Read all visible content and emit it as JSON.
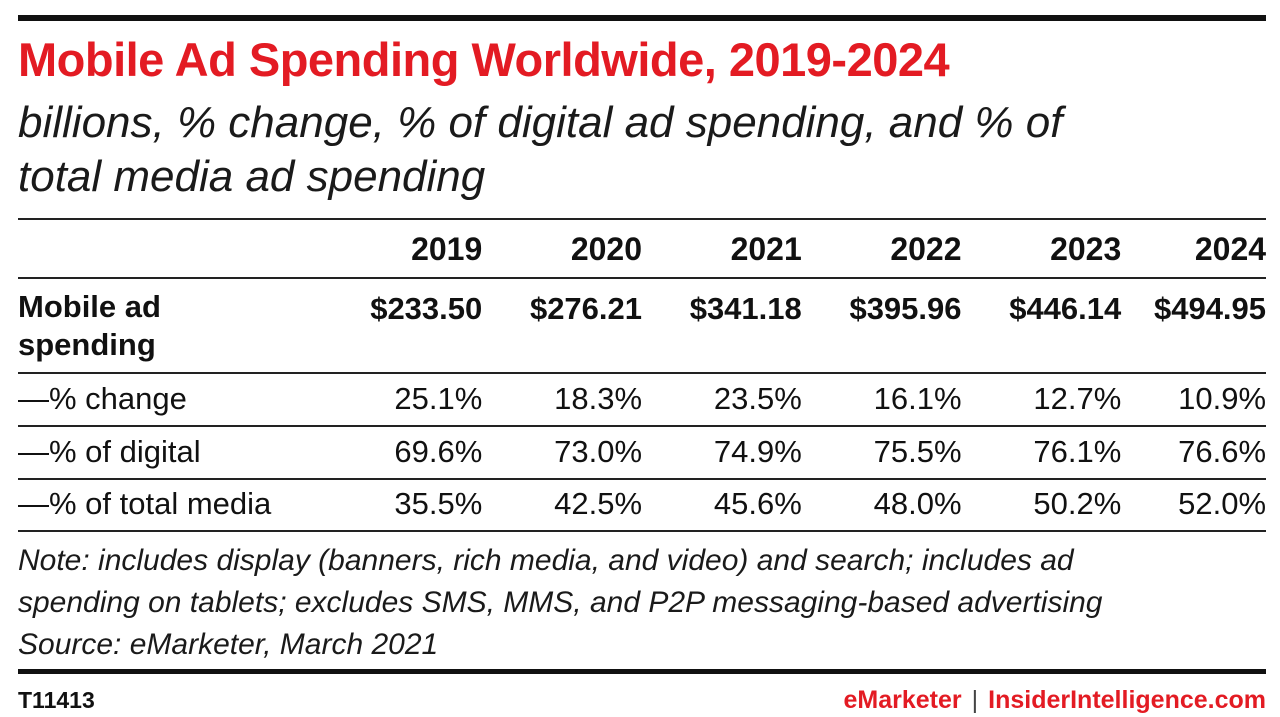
{
  "colors": {
    "title": "#e31b23",
    "text": "#111111",
    "brand_red": "#e31b23"
  },
  "title": "Mobile Ad Spending Worldwide, 2019-2024",
  "subtitle_lines": [
    "billions, % change, % of digital ad spending, and % of",
    "total media ad spending"
  ],
  "chart_data": {
    "type": "table",
    "title": "Mobile Ad Spending Worldwide, 2019-2024",
    "subtitle": "billions, % change, % of digital ad spending, and % of total media ad spending",
    "columns": [
      "2019",
      "2020",
      "2021",
      "2022",
      "2023",
      "2024"
    ],
    "rows": [
      {
        "label": "Mobile ad spending",
        "label_lines": [
          "Mobile ad",
          "spending"
        ],
        "values": [
          "$233.50",
          "$276.21",
          "$341.18",
          "$395.96",
          "$446.14",
          "$494.95"
        ]
      },
      {
        "label": "—% change",
        "values": [
          "25.1%",
          "18.3%",
          "23.5%",
          "16.1%",
          "12.7%",
          "10.9%"
        ]
      },
      {
        "label": "—% of digital",
        "values": [
          "69.6%",
          "73.0%",
          "74.9%",
          "75.5%",
          "76.1%",
          "76.6%"
        ]
      },
      {
        "label": "—% of total media",
        "values": [
          "35.5%",
          "42.5%",
          "45.6%",
          "48.0%",
          "50.2%",
          "52.0%"
        ]
      }
    ]
  },
  "notes": {
    "lines": [
      "Note: includes display (banners, rich media, and video) and search; includes ad",
      "spending on tablets; excludes SMS, MMS, and P2P messaging-based advertising",
      "Source: eMarketer, March 2021"
    ]
  },
  "footer": {
    "id": "T11413",
    "brand_left": "eMarketer",
    "separator": "|",
    "brand_right": "InsiderIntelligence.com"
  }
}
